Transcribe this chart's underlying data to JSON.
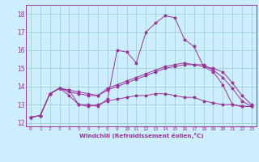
{
  "xlabel": "Windchill (Refroidissement éolien,°C)",
  "background_color": "#cceeff",
  "line_color": "#993399",
  "grid_color": "#99cccc",
  "x_ticks": [
    0,
    1,
    2,
    3,
    4,
    5,
    6,
    7,
    8,
    9,
    10,
    11,
    12,
    13,
    14,
    15,
    16,
    17,
    18,
    19,
    20,
    21,
    22,
    23
  ],
  "y_ticks": [
    12,
    13,
    14,
    15,
    16,
    17,
    18
  ],
  "ylim": [
    11.8,
    18.5
  ],
  "xlim": [
    -0.5,
    23.5
  ],
  "lines": [
    {
      "x": [
        0,
        1,
        2,
        3,
        4,
        5,
        6,
        7,
        8,
        9,
        10,
        11,
        12,
        13,
        14,
        15,
        16,
        17,
        18,
        19,
        20,
        21,
        22,
        23
      ],
      "y": [
        12.3,
        12.4,
        13.6,
        13.9,
        13.8,
        13.0,
        13.0,
        12.9,
        13.3,
        16.0,
        15.9,
        15.3,
        17.0,
        17.5,
        17.9,
        17.8,
        16.6,
        16.2,
        15.1,
        14.8,
        14.1,
        13.0,
        12.9,
        12.9
      ]
    },
    {
      "x": [
        0,
        1,
        2,
        3,
        4,
        5,
        6,
        7,
        8,
        9,
        10,
        11,
        12,
        13,
        14,
        15,
        16,
        17,
        18,
        19,
        20,
        21,
        22,
        23
      ],
      "y": [
        12.3,
        12.4,
        13.6,
        13.9,
        13.8,
        13.7,
        13.6,
        13.5,
        13.8,
        14.0,
        14.2,
        14.4,
        14.6,
        14.8,
        15.0,
        15.1,
        15.2,
        15.2,
        15.1,
        15.0,
        14.8,
        14.2,
        13.5,
        13.0
      ]
    },
    {
      "x": [
        0,
        1,
        2,
        3,
        4,
        5,
        6,
        7,
        8,
        9,
        10,
        11,
        12,
        13,
        14,
        15,
        16,
        17,
        18,
        19,
        20,
        21,
        22,
        23
      ],
      "y": [
        12.3,
        12.4,
        13.6,
        13.9,
        13.7,
        13.6,
        13.5,
        13.5,
        13.9,
        14.1,
        14.3,
        14.5,
        14.7,
        14.9,
        15.1,
        15.2,
        15.3,
        15.2,
        15.2,
        14.9,
        14.5,
        13.9,
        13.2,
        12.9
      ]
    },
    {
      "x": [
        0,
        1,
        2,
        3,
        4,
        5,
        6,
        7,
        8,
        9,
        10,
        11,
        12,
        13,
        14,
        15,
        16,
        17,
        18,
        19,
        20,
        21,
        22,
        23
      ],
      "y": [
        12.3,
        12.4,
        13.6,
        13.9,
        13.5,
        13.0,
        12.9,
        13.0,
        13.2,
        13.3,
        13.4,
        13.5,
        13.5,
        13.6,
        13.6,
        13.5,
        13.4,
        13.4,
        13.2,
        13.1,
        13.0,
        13.0,
        12.9,
        12.9
      ]
    }
  ]
}
